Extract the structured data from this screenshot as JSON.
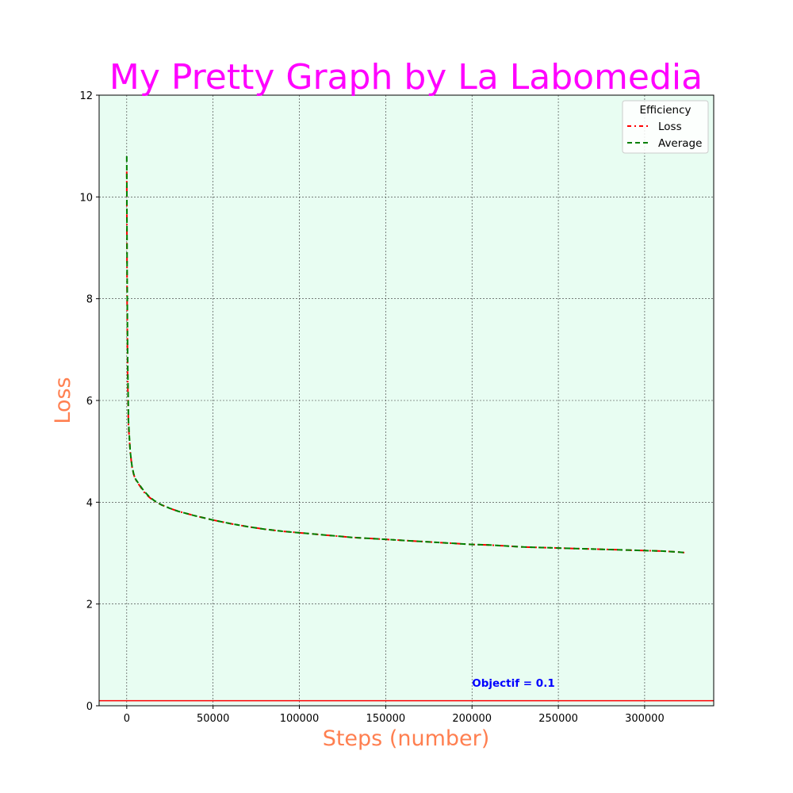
{
  "chart_data": {
    "type": "line",
    "title": "My Pretty Graph by La Labomedia",
    "xlabel": "Steps (number)",
    "ylabel": "Loss",
    "xlim": [
      -16000,
      340000
    ],
    "ylim": [
      0,
      12
    ],
    "xticks": [
      0,
      50000,
      100000,
      150000,
      200000,
      250000,
      300000
    ],
    "yticks": [
      0,
      2,
      4,
      6,
      8,
      10,
      12
    ],
    "grid": true,
    "legend": {
      "title": "Efficiency",
      "placement": "top-right"
    },
    "series": [
      {
        "name": "Loss",
        "color": "#ff0000",
        "style": "dashdot",
        "x": [
          0,
          200,
          500,
          1000,
          2000,
          3000,
          4000,
          5000,
          7000,
          10000,
          13000,
          16000,
          20000,
          25000,
          30000,
          40000,
          50000,
          60000,
          70000,
          80000,
          90000,
          100000,
          110000,
          120000,
          130000,
          140000,
          150000,
          160000,
          170000,
          180000,
          190000,
          200000,
          210000,
          220000,
          230000,
          240000,
          250000,
          260000,
          270000,
          280000,
          290000,
          300000,
          310000,
          320000,
          323000
        ],
        "y": [
          10.5,
          8.0,
          6.5,
          5.5,
          5.0,
          4.7,
          4.55,
          4.45,
          4.35,
          4.2,
          4.1,
          4.02,
          3.95,
          3.88,
          3.82,
          3.73,
          3.65,
          3.58,
          3.52,
          3.47,
          3.43,
          3.4,
          3.37,
          3.34,
          3.31,
          3.29,
          3.27,
          3.25,
          3.23,
          3.21,
          3.19,
          3.17,
          3.16,
          3.14,
          3.12,
          3.11,
          3.1,
          3.09,
          3.08,
          3.07,
          3.06,
          3.05,
          3.04,
          3.02,
          3.01
        ]
      },
      {
        "name": "Average",
        "color": "#008000",
        "style": "dashed",
        "x": [
          0,
          200,
          500,
          1000,
          2000,
          3000,
          4000,
          5000,
          7000,
          10000,
          13000,
          16000,
          20000,
          25000,
          30000,
          40000,
          50000,
          60000,
          70000,
          80000,
          90000,
          100000,
          110000,
          120000,
          130000,
          140000,
          150000,
          160000,
          170000,
          180000,
          190000,
          200000,
          210000,
          220000,
          230000,
          240000,
          250000,
          260000,
          270000,
          280000,
          290000,
          300000,
          310000,
          320000,
          323000
        ],
        "y": [
          10.8,
          8.6,
          6.9,
          5.6,
          5.0,
          4.72,
          4.56,
          4.46,
          4.36,
          4.22,
          4.11,
          4.03,
          3.95,
          3.88,
          3.82,
          3.73,
          3.65,
          3.58,
          3.52,
          3.47,
          3.43,
          3.4,
          3.37,
          3.34,
          3.31,
          3.29,
          3.27,
          3.25,
          3.23,
          3.21,
          3.19,
          3.17,
          3.16,
          3.14,
          3.12,
          3.11,
          3.1,
          3.09,
          3.08,
          3.07,
          3.06,
          3.05,
          3.04,
          3.02,
          3.01
        ]
      }
    ],
    "reference_line": {
      "y": 0.1,
      "color": "#ff0000"
    },
    "annotation": {
      "text": "Objectif = 0.1",
      "x": 200000,
      "y": 0.25,
      "color": "#0000ff"
    },
    "colors": {
      "title": "#ff00ff",
      "axis_labels": "#ff7f50",
      "plot_background": "#e8fdf2",
      "grid": "#333333"
    }
  }
}
